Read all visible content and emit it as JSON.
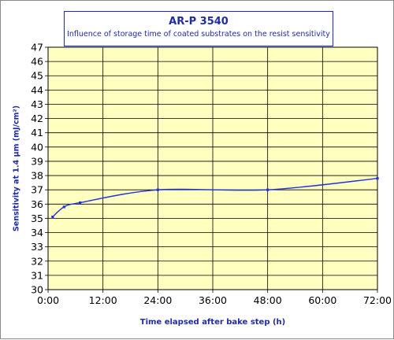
{
  "chart_data": {
    "type": "line",
    "title": "AR-P 3540",
    "subtitle": "Influence of storage time of coated substrates on the resist sensitivity",
    "xlabel": "Time elapsed after bake step (h)",
    "ylabel": "Sensitivity at 1.4 µm (mJ/cm²)",
    "xlim_hours": [
      0,
      72
    ],
    "ylim": [
      30,
      47
    ],
    "x_ticks": [
      "0:00",
      "12:00",
      "24:00",
      "36:00",
      "48:00",
      "60:00",
      "72:00"
    ],
    "y_ticks": [
      "30",
      "31",
      "32",
      "33",
      "34",
      "35",
      "36",
      "37",
      "38",
      "39",
      "40",
      "41",
      "42",
      "43",
      "44",
      "45",
      "46",
      "47"
    ],
    "grid": true,
    "series": [
      {
        "x_hours": [
          1,
          3.5,
          7,
          24,
          48,
          72
        ],
        "values": [
          35.1,
          35.8,
          36.1,
          37.0,
          37.0,
          37.8
        ]
      }
    ],
    "colors": {
      "plot_background": "#ffffc0",
      "line": "#2033d8",
      "text": "#1f2ba3",
      "grid": "#000000"
    }
  }
}
